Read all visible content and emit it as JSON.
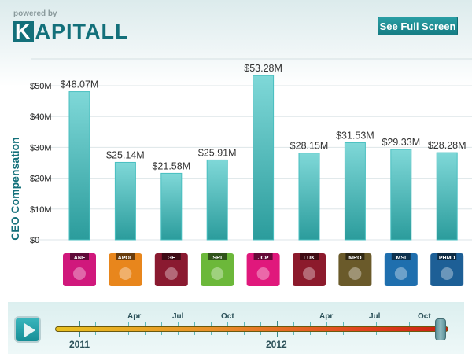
{
  "header": {
    "powered_by": "powered by",
    "brand_initial": "K",
    "brand_rest": "APITALL",
    "fullscreen_label": "See Full Screen"
  },
  "chart_data": {
    "type": "bar",
    "ylabel": "CEO Compensation",
    "ylim": [
      0,
      55
    ],
    "yticks": [
      "$0",
      "$10M",
      "$20M",
      "$30M",
      "$40M",
      "$50M"
    ],
    "grid": true,
    "categories": [
      "ANF",
      "APOL",
      "GE",
      "SRI",
      "JCP",
      "LUK",
      "MRO",
      "MSI",
      "PHMD"
    ],
    "values": [
      48.07,
      25.14,
      21.58,
      25.91,
      53.28,
      28.15,
      31.53,
      29.33,
      28.28
    ],
    "data_labels": [
      "$48.07M",
      "$25.14M",
      "$21.58M",
      "$25.91M",
      "$53.28M",
      "$28.15M",
      "$31.53M",
      "$29.33M",
      "$28.28M"
    ],
    "bar_color": "#4cc0c0",
    "logo_colors": [
      "#d0187c",
      "#e8861c",
      "#8a1a30",
      "#6cb83a",
      "#e0187c",
      "#8c1a2c",
      "#6a5a2a",
      "#1f6fae",
      "#1d5f96"
    ]
  },
  "timeline": {
    "month_labels": [
      "Apr",
      "Jul",
      "Oct",
      "Apr",
      "Jul",
      "Oct"
    ],
    "year_labels": [
      "2011",
      "2012"
    ],
    "position": 1.0,
    "track_colors": [
      "#e8c020",
      "#c82010"
    ]
  }
}
